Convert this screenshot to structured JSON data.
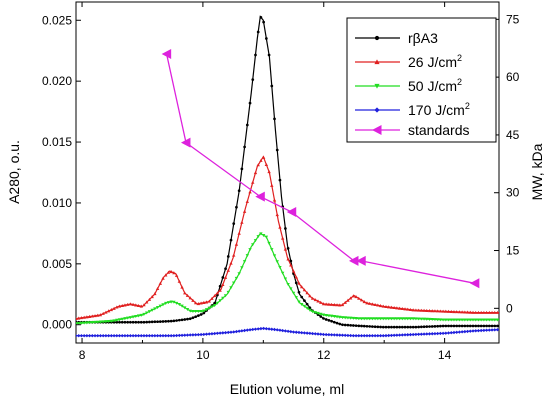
{
  "chart_data": {
    "type": "line",
    "title": "",
    "xlabel": "Elution volume, ml",
    "ylabel": "A280, o.u.",
    "y2label": "MW, kDa",
    "xlim": [
      7.9,
      14.9
    ],
    "ylim": [
      -0.0015,
      0.0265
    ],
    "y2lim": [
      -9,
      79.5
    ],
    "xticks": [
      8,
      10,
      12,
      14
    ],
    "xtick_labels": [
      "8",
      "10",
      "12",
      "14"
    ],
    "yticks": [
      0,
      0.005,
      0.01,
      0.015,
      0.02,
      0.025
    ],
    "ytick_labels": [
      "0.000",
      "0.005",
      "0.010",
      "0.015",
      "0.020",
      "0.025"
    ],
    "y2ticks": [
      0,
      15,
      30,
      45,
      60,
      75
    ],
    "y2tick_labels": [
      "0",
      "15",
      "30",
      "45",
      "60",
      "75"
    ],
    "grid": false,
    "legend_position": "top-right",
    "series": [
      {
        "name": "rβA3",
        "legend_parts": [
          "r",
          "β",
          "A3"
        ],
        "color": "#000000",
        "marker": "dot",
        "x": [
          7.9,
          8.5,
          9.0,
          9.5,
          9.8,
          10.0,
          10.2,
          10.4,
          10.6,
          10.8,
          10.9,
          10.95,
          11.0,
          11.1,
          11.2,
          11.3,
          11.4,
          11.5,
          11.6,
          11.8,
          12.0,
          12.3,
          12.6,
          13.0,
          13.5,
          14.0,
          14.9
        ],
        "y": [
          0.0002,
          0.0002,
          0.0002,
          0.0003,
          0.0005,
          0.0009,
          0.0018,
          0.005,
          0.011,
          0.019,
          0.0235,
          0.0253,
          0.025,
          0.022,
          0.016,
          0.0105,
          0.0065,
          0.0042,
          0.0025,
          0.0012,
          0.0005,
          0.0,
          -0.0001,
          -0.0002,
          -0.0002,
          -0.0001,
          -0.0001
        ]
      },
      {
        "name": "26 J/cm2",
        "legend_parts": [
          "26 J/cm",
          "2"
        ],
        "color": "#e02020",
        "marker": "triangle-up",
        "x": [
          7.9,
          8.3,
          8.6,
          8.8,
          9.0,
          9.2,
          9.35,
          9.45,
          9.55,
          9.7,
          9.9,
          10.1,
          10.3,
          10.5,
          10.7,
          10.9,
          11.0,
          11.1,
          11.25,
          11.4,
          11.6,
          11.8,
          12.0,
          12.3,
          12.5,
          12.7,
          13.0,
          13.5,
          14.0,
          14.5,
          14.9
        ],
        "y": [
          0.0005,
          0.0008,
          0.0015,
          0.0017,
          0.0015,
          0.0025,
          0.0039,
          0.0044,
          0.0042,
          0.0026,
          0.0017,
          0.0019,
          0.0029,
          0.0055,
          0.0095,
          0.013,
          0.0138,
          0.0125,
          0.0085,
          0.0055,
          0.0033,
          0.0022,
          0.0017,
          0.0016,
          0.0024,
          0.0018,
          0.0015,
          0.0012,
          0.0011,
          0.001,
          0.001
        ]
      },
      {
        "name": "50 J/cm2",
        "legend_parts": [
          "50 J/cm",
          "2"
        ],
        "color": "#22dd22",
        "marker": "triangle-down",
        "x": [
          7.9,
          8.5,
          9.0,
          9.2,
          9.4,
          9.5,
          9.6,
          9.8,
          10.0,
          10.2,
          10.4,
          10.6,
          10.8,
          10.95,
          11.05,
          11.2,
          11.4,
          11.6,
          11.8,
          12.0,
          12.3,
          12.6,
          13.0,
          13.5,
          14.0,
          14.5,
          14.9
        ],
        "y": [
          0.0001,
          0.0003,
          0.0008,
          0.0013,
          0.0018,
          0.0019,
          0.0017,
          0.0011,
          0.0011,
          0.0016,
          0.0025,
          0.0042,
          0.0064,
          0.0075,
          0.0072,
          0.0055,
          0.0034,
          0.0018,
          0.0011,
          0.0008,
          0.0006,
          0.0005,
          0.0005,
          0.0005,
          0.0004,
          0.0004,
          0.0004
        ]
      },
      {
        "name": "170 J/cm2",
        "legend_parts": [
          "170 J/cm",
          "2"
        ],
        "color": "#2020dd",
        "marker": "diamond",
        "x": [
          7.9,
          8.5,
          9.0,
          9.5,
          10.0,
          10.5,
          10.8,
          11.0,
          11.2,
          11.5,
          12.0,
          12.5,
          13.0,
          13.5,
          14.0,
          14.5,
          14.9
        ],
        "y": [
          -0.0009,
          -0.0009,
          -0.0009,
          -0.0009,
          -0.0008,
          -0.0006,
          -0.0004,
          -0.0003,
          -0.0004,
          -0.0006,
          -0.0008,
          -0.0009,
          -0.0009,
          -0.0008,
          -0.0007,
          -0.0005,
          -0.0004
        ]
      }
    ],
    "standards": {
      "name": "standards",
      "axis": "right",
      "color": "#dd22dd",
      "marker": "triangle-left",
      "x": [
        9.4,
        9.72,
        10.95,
        11.47,
        12.5,
        12.62,
        14.5
      ],
      "y": [
        66,
        43,
        29,
        25,
        12.3,
        12.3,
        6.5
      ]
    }
  }
}
